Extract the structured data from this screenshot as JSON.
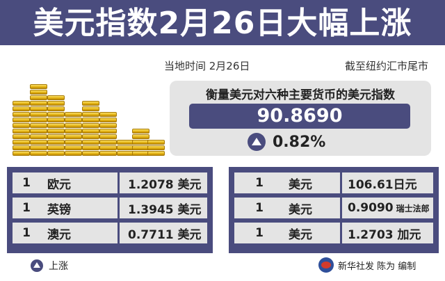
{
  "banner": {
    "title": "美元指数2月26日大幅上涨"
  },
  "meta": {
    "local_time": "当地时间  2月26日",
    "close_note": "截至纽约汇市尾市"
  },
  "index_panel": {
    "label": "衡量美元对六种主要货币的美元指数",
    "value": "90.8690",
    "change": "0.82%",
    "direction_icon": "up-triangle-icon"
  },
  "rates_left": [
    {
      "amount": "1",
      "currency": "欧元",
      "rate": "1.2078 美元"
    },
    {
      "amount": "1",
      "currency": "英镑",
      "rate": "1.3945 美元"
    },
    {
      "amount": "1",
      "currency": "澳元",
      "rate": "0.7711 美元"
    }
  ],
  "rates_right": [
    {
      "amount": "1",
      "currency": "美元",
      "rate": "106.61日元",
      "unit": ""
    },
    {
      "amount": "1",
      "currency": "美元",
      "rate": "0.9090",
      "unit": "瑞士法郎"
    },
    {
      "amount": "1",
      "currency": "美元",
      "rate": "1.2703 加元",
      "unit": ""
    }
  ],
  "footer": {
    "legend_label": "上涨",
    "credit": "新华社发 陈为 编制"
  },
  "colors": {
    "primary": "#4a4c7e",
    "panel": "#e4e4e4",
    "coin": "#e3b10e"
  }
}
